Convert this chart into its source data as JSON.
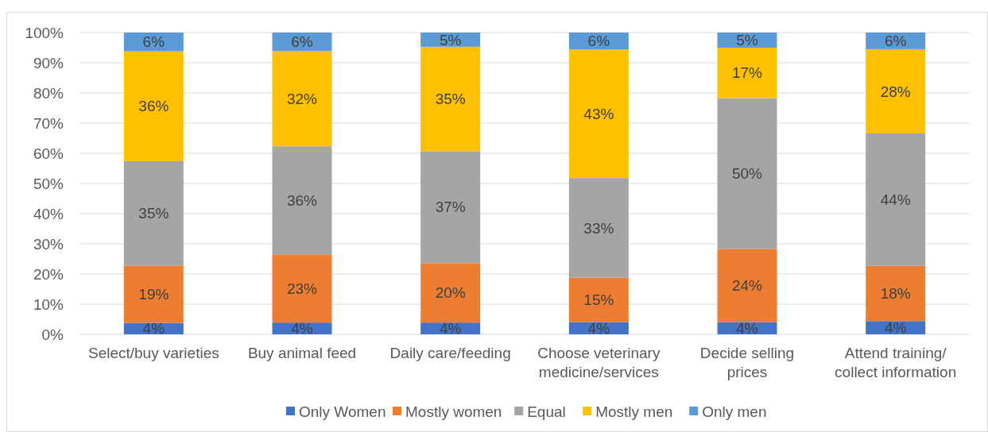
{
  "chart_data": {
    "type": "bar",
    "stacked": true,
    "categories": [
      "Select/buy varieties",
      "Buy animal feed",
      "Daily care/feeding",
      "Choose veterinary medicine/services",
      "Decide selling prices",
      "Attend training/ collect information"
    ],
    "series": [
      {
        "name": "Only Women",
        "color": "#4472c4",
        "values": [
          3.8,
          3.9,
          3.9,
          4.1,
          4.0,
          4.4
        ],
        "value_labels": [
          "4%",
          "4%",
          "4%",
          "4%",
          "4%",
          "4%"
        ]
      },
      {
        "name": "Mostly women",
        "color": "#ed7d31",
        "values": [
          19.0,
          22.6,
          19.7,
          14.7,
          24.3,
          18.3
        ],
        "value_labels": [
          "19%",
          "23%",
          "20%",
          "15%",
          "24%",
          "18%"
        ]
      },
      {
        "name": "Equal",
        "color": "#a5a5a5",
        "values": [
          34.6,
          35.8,
          37.1,
          33.0,
          50.0,
          43.9
        ],
        "value_labels": [
          "35%",
          "36%",
          "37%",
          "33%",
          "50%",
          "44%"
        ]
      },
      {
        "name": "Mostly men",
        "color": "#ffc000",
        "values": [
          36.4,
          31.6,
          34.6,
          42.6,
          16.7,
          27.9
        ],
        "value_labels": [
          "36%",
          "32%",
          "35%",
          "43%",
          "17%",
          "28%"
        ]
      },
      {
        "name": "Only men",
        "color": "#5b9bd5",
        "values": [
          6.2,
          6.1,
          4.7,
          5.6,
          5.0,
          5.5
        ],
        "value_labels": [
          "6%",
          "6%",
          "5%",
          "6%",
          "5%",
          "6%"
        ]
      }
    ],
    "ylim": [
      0,
      100
    ],
    "yticks": [
      {
        "value": 0,
        "label": "0%"
      },
      {
        "value": 10,
        "label": "10%"
      },
      {
        "value": 20,
        "label": "20%"
      },
      {
        "value": 30,
        "label": "30%"
      },
      {
        "value": 40,
        "label": "40%"
      },
      {
        "value": 50,
        "label": "50%"
      },
      {
        "value": 60,
        "label": "60%"
      },
      {
        "value": 70,
        "label": "70%"
      },
      {
        "value": 80,
        "label": "80%"
      },
      {
        "value": 90,
        "label": "90%"
      },
      {
        "value": 100,
        "label": "100%"
      }
    ],
    "grid": "y",
    "legend": "bottom"
  }
}
